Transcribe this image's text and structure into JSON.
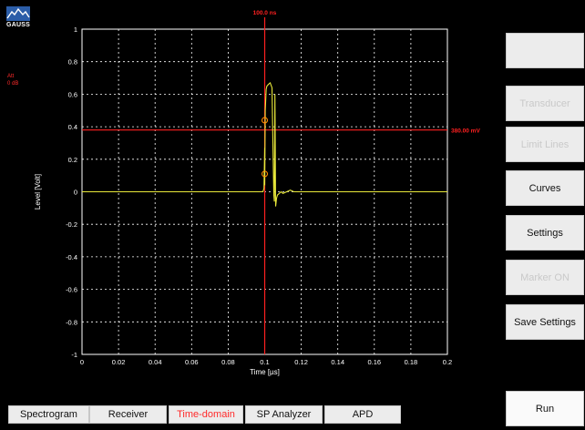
{
  "brand": {
    "logo_text": "GAUSS",
    "logo_icon": "mountain-icon"
  },
  "attenuation": {
    "label": "Att",
    "value": "0 dB"
  },
  "chart_data": {
    "type": "line",
    "xlabel": "Time [µs]",
    "ylabel": "Level [Volt]",
    "xlim": [
      0,
      0.2
    ],
    "ylim": [
      -1,
      1
    ],
    "x_ticks": [
      0,
      0.02,
      0.04,
      0.06,
      0.08,
      0.1,
      0.12,
      0.14,
      0.16,
      0.18,
      0.2
    ],
    "x_tick_labels": [
      "0",
      "0.02",
      "0.04",
      "0.06",
      "0.08",
      "0.1",
      "0.12",
      "0.14",
      "0.16",
      "0.18",
      "0.2"
    ],
    "y_ticks": [
      1,
      0.8,
      0.6,
      0.4,
      0.2,
      0,
      -0.2,
      -0.4,
      -0.6,
      -0.8,
      -1
    ],
    "y_tick_labels": [
      "1",
      "0.8",
      "0.6",
      "0.4",
      "0.2",
      "0",
      "-0.2",
      "-0.4",
      "-0.6",
      "-0.8",
      "-1"
    ],
    "grid": true,
    "colors": {
      "background": "#000000",
      "axes": "#ffffff",
      "signal": "#e8e83a",
      "cursor": "#ff2020",
      "marker": "#ff8c00"
    },
    "series": [
      {
        "x": [
          0,
          0.099,
          0.0996,
          0.1,
          0.1,
          0.1003,
          0.1008,
          0.1012,
          0.102,
          0.103,
          0.104,
          0.1045,
          0.105,
          0.1053,
          0.1056,
          0.106,
          0.1065,
          0.107,
          0.108,
          0.109,
          0.11,
          0.112,
          0.114,
          0.116,
          0.2
        ],
        "y": [
          0,
          0,
          0.02,
          0.27,
          0.04,
          0.5,
          0.63,
          0.65,
          0.66,
          0.67,
          0.64,
          0.3,
          -0.02,
          -0.06,
          0.6,
          -0.09,
          -0.04,
          -0.02,
          -0.01,
          0,
          -0.01,
          0,
          0.01,
          0,
          0
        ]
      }
    ],
    "vertical_cursor": {
      "x": 0.1,
      "label": "100.0 ns"
    },
    "horizontal_cursor": {
      "y": 0.38,
      "label": "380.00 mV"
    },
    "markers": [
      {
        "x": 0.1,
        "y": 0.44
      },
      {
        "x": 0.1,
        "y": 0.11
      }
    ]
  },
  "side_buttons": [
    {
      "label": "",
      "enabled": true
    },
    {
      "label": "Transducer",
      "enabled": false
    },
    {
      "label": "Limit Lines",
      "enabled": false
    },
    {
      "label": "Curves",
      "enabled": true
    },
    {
      "label": "Settings",
      "enabled": true
    },
    {
      "label": "Marker ON",
      "enabled": false
    },
    {
      "label": "Save Settings",
      "enabled": true
    }
  ],
  "tabs": [
    {
      "label": "Spectrogram",
      "active": false
    },
    {
      "label": "Receiver",
      "active": false
    },
    {
      "label": "Time-domain",
      "active": true
    },
    {
      "label": "SP Analyzer",
      "active": false
    },
    {
      "label": "APD",
      "active": false
    }
  ],
  "run_button": {
    "label": "Run"
  }
}
